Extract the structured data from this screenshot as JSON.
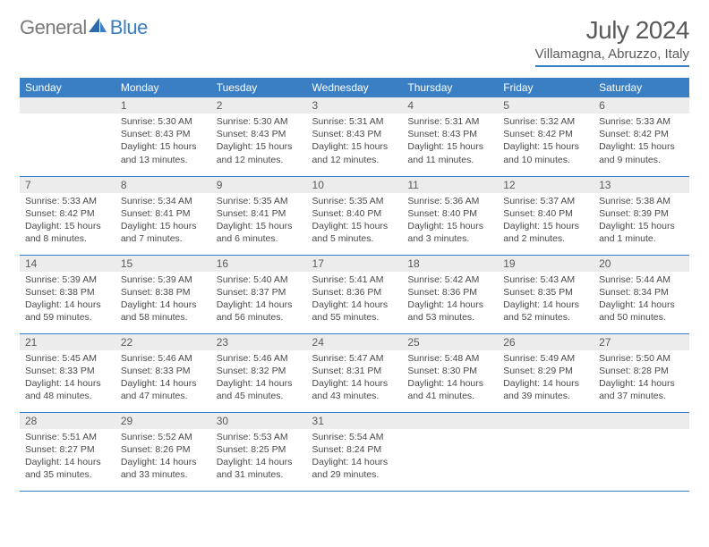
{
  "logo": {
    "general": "General",
    "blue": "Blue"
  },
  "title": "July 2024",
  "location": "Villamagna, Abruzzo, Italy",
  "colors": {
    "accent": "#3a7fc4",
    "header_text": "#ffffff",
    "daynum_bg": "#ececec",
    "body_text": "#4a4a4a",
    "title_text": "#5a5a5a",
    "logo_gray": "#7a7a7a"
  },
  "weekdays": [
    "Sunday",
    "Monday",
    "Tuesday",
    "Wednesday",
    "Thursday",
    "Friday",
    "Saturday"
  ],
  "weeks": [
    [
      {
        "num": "",
        "sunrise": "",
        "sunset": "",
        "daylight": ""
      },
      {
        "num": "1",
        "sunrise": "Sunrise: 5:30 AM",
        "sunset": "Sunset: 8:43 PM",
        "daylight": "Daylight: 15 hours and 13 minutes."
      },
      {
        "num": "2",
        "sunrise": "Sunrise: 5:30 AM",
        "sunset": "Sunset: 8:43 PM",
        "daylight": "Daylight: 15 hours and 12 minutes."
      },
      {
        "num": "3",
        "sunrise": "Sunrise: 5:31 AM",
        "sunset": "Sunset: 8:43 PM",
        "daylight": "Daylight: 15 hours and 12 minutes."
      },
      {
        "num": "4",
        "sunrise": "Sunrise: 5:31 AM",
        "sunset": "Sunset: 8:43 PM",
        "daylight": "Daylight: 15 hours and 11 minutes."
      },
      {
        "num": "5",
        "sunrise": "Sunrise: 5:32 AM",
        "sunset": "Sunset: 8:42 PM",
        "daylight": "Daylight: 15 hours and 10 minutes."
      },
      {
        "num": "6",
        "sunrise": "Sunrise: 5:33 AM",
        "sunset": "Sunset: 8:42 PM",
        "daylight": "Daylight: 15 hours and 9 minutes."
      }
    ],
    [
      {
        "num": "7",
        "sunrise": "Sunrise: 5:33 AM",
        "sunset": "Sunset: 8:42 PM",
        "daylight": "Daylight: 15 hours and 8 minutes."
      },
      {
        "num": "8",
        "sunrise": "Sunrise: 5:34 AM",
        "sunset": "Sunset: 8:41 PM",
        "daylight": "Daylight: 15 hours and 7 minutes."
      },
      {
        "num": "9",
        "sunrise": "Sunrise: 5:35 AM",
        "sunset": "Sunset: 8:41 PM",
        "daylight": "Daylight: 15 hours and 6 minutes."
      },
      {
        "num": "10",
        "sunrise": "Sunrise: 5:35 AM",
        "sunset": "Sunset: 8:40 PM",
        "daylight": "Daylight: 15 hours and 5 minutes."
      },
      {
        "num": "11",
        "sunrise": "Sunrise: 5:36 AM",
        "sunset": "Sunset: 8:40 PM",
        "daylight": "Daylight: 15 hours and 3 minutes."
      },
      {
        "num": "12",
        "sunrise": "Sunrise: 5:37 AM",
        "sunset": "Sunset: 8:40 PM",
        "daylight": "Daylight: 15 hours and 2 minutes."
      },
      {
        "num": "13",
        "sunrise": "Sunrise: 5:38 AM",
        "sunset": "Sunset: 8:39 PM",
        "daylight": "Daylight: 15 hours and 1 minute."
      }
    ],
    [
      {
        "num": "14",
        "sunrise": "Sunrise: 5:39 AM",
        "sunset": "Sunset: 8:38 PM",
        "daylight": "Daylight: 14 hours and 59 minutes."
      },
      {
        "num": "15",
        "sunrise": "Sunrise: 5:39 AM",
        "sunset": "Sunset: 8:38 PM",
        "daylight": "Daylight: 14 hours and 58 minutes."
      },
      {
        "num": "16",
        "sunrise": "Sunrise: 5:40 AM",
        "sunset": "Sunset: 8:37 PM",
        "daylight": "Daylight: 14 hours and 56 minutes."
      },
      {
        "num": "17",
        "sunrise": "Sunrise: 5:41 AM",
        "sunset": "Sunset: 8:36 PM",
        "daylight": "Daylight: 14 hours and 55 minutes."
      },
      {
        "num": "18",
        "sunrise": "Sunrise: 5:42 AM",
        "sunset": "Sunset: 8:36 PM",
        "daylight": "Daylight: 14 hours and 53 minutes."
      },
      {
        "num": "19",
        "sunrise": "Sunrise: 5:43 AM",
        "sunset": "Sunset: 8:35 PM",
        "daylight": "Daylight: 14 hours and 52 minutes."
      },
      {
        "num": "20",
        "sunrise": "Sunrise: 5:44 AM",
        "sunset": "Sunset: 8:34 PM",
        "daylight": "Daylight: 14 hours and 50 minutes."
      }
    ],
    [
      {
        "num": "21",
        "sunrise": "Sunrise: 5:45 AM",
        "sunset": "Sunset: 8:33 PM",
        "daylight": "Daylight: 14 hours and 48 minutes."
      },
      {
        "num": "22",
        "sunrise": "Sunrise: 5:46 AM",
        "sunset": "Sunset: 8:33 PM",
        "daylight": "Daylight: 14 hours and 47 minutes."
      },
      {
        "num": "23",
        "sunrise": "Sunrise: 5:46 AM",
        "sunset": "Sunset: 8:32 PM",
        "daylight": "Daylight: 14 hours and 45 minutes."
      },
      {
        "num": "24",
        "sunrise": "Sunrise: 5:47 AM",
        "sunset": "Sunset: 8:31 PM",
        "daylight": "Daylight: 14 hours and 43 minutes."
      },
      {
        "num": "25",
        "sunrise": "Sunrise: 5:48 AM",
        "sunset": "Sunset: 8:30 PM",
        "daylight": "Daylight: 14 hours and 41 minutes."
      },
      {
        "num": "26",
        "sunrise": "Sunrise: 5:49 AM",
        "sunset": "Sunset: 8:29 PM",
        "daylight": "Daylight: 14 hours and 39 minutes."
      },
      {
        "num": "27",
        "sunrise": "Sunrise: 5:50 AM",
        "sunset": "Sunset: 8:28 PM",
        "daylight": "Daylight: 14 hours and 37 minutes."
      }
    ],
    [
      {
        "num": "28",
        "sunrise": "Sunrise: 5:51 AM",
        "sunset": "Sunset: 8:27 PM",
        "daylight": "Daylight: 14 hours and 35 minutes."
      },
      {
        "num": "29",
        "sunrise": "Sunrise: 5:52 AM",
        "sunset": "Sunset: 8:26 PM",
        "daylight": "Daylight: 14 hours and 33 minutes."
      },
      {
        "num": "30",
        "sunrise": "Sunrise: 5:53 AM",
        "sunset": "Sunset: 8:25 PM",
        "daylight": "Daylight: 14 hours and 31 minutes."
      },
      {
        "num": "31",
        "sunrise": "Sunrise: 5:54 AM",
        "sunset": "Sunset: 8:24 PM",
        "daylight": "Daylight: 14 hours and 29 minutes."
      },
      {
        "num": "",
        "sunrise": "",
        "sunset": "",
        "daylight": ""
      },
      {
        "num": "",
        "sunrise": "",
        "sunset": "",
        "daylight": ""
      },
      {
        "num": "",
        "sunrise": "",
        "sunset": "",
        "daylight": ""
      }
    ]
  ]
}
